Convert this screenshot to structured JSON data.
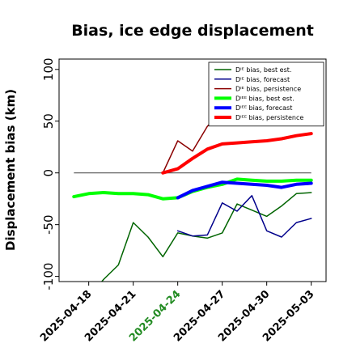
{
  "chart_data": {
    "type": "line",
    "title": "Bias, ice edge displacement",
    "xlabel": "",
    "ylabel": "Displacement bias (km)",
    "xlim": [
      "2025-04-16",
      "2025-05-04"
    ],
    "ylim": [
      -105,
      110
    ],
    "yticks": [
      -100,
      -50,
      0,
      50,
      100
    ],
    "ytick_labels": [
      "-100",
      "-50",
      "0",
      "50",
      "100"
    ],
    "xticks": [
      "2025-04-18",
      "2025-04-21",
      "2025-04-24",
      "2025-04-27",
      "2025-04-30",
      "2025-05-03"
    ],
    "highlight_xtick": "2025-04-24",
    "highlight_color": "#228B22",
    "zero_line": true,
    "grid": false,
    "legend_position": "top-right",
    "series": [
      {
        "name": "Dᴵᴱ bias, best est.",
        "color": "#006400",
        "width": 1.5,
        "x": [
          "2025-04-17",
          "2025-04-18",
          "2025-04-19",
          "2025-04-20",
          "2025-04-21",
          "2025-04-22",
          "2025-04-23",
          "2025-04-24",
          "2025-04-25",
          "2025-04-26",
          "2025-04-27",
          "2025-04-28",
          "2025-04-29",
          "2025-04-30",
          "2025-05-01",
          "2025-05-02",
          "2025-05-03"
        ],
        "y": [
          -150,
          -120,
          -103,
          -89,
          -48,
          -62,
          -81,
          -58,
          -61,
          -63,
          -58,
          -30,
          -36,
          -42,
          -32,
          -20,
          -19
        ]
      },
      {
        "name": "Dᴵᴱ bias, forecast",
        "color": "#00008B",
        "width": 1.5,
        "x": [
          "2025-04-24",
          "2025-04-25",
          "2025-04-26",
          "2025-04-27",
          "2025-04-28",
          "2025-04-29",
          "2025-04-30",
          "2025-05-01",
          "2025-05-02",
          "2025-05-03"
        ],
        "y": [
          -56,
          -61,
          -60,
          -29,
          -37,
          -22,
          -56,
          -62,
          -48,
          -44
        ]
      },
      {
        "name": "Dᴵᴱ bias, persistence",
        "color": "#8B0000",
        "width": 1.5,
        "x": [
          "2025-04-23",
          "2025-04-24",
          "2025-04-25",
          "2025-04-26",
          "2025-04-27",
          "2025-04-28",
          "2025-04-29",
          "2025-04-30",
          "2025-05-01",
          "2025-05-02",
          "2025-05-03"
        ],
        "y": [
          0,
          31,
          21,
          45,
          60,
          68,
          72,
          78,
          82,
          86,
          90
        ]
      },
      {
        "name": "Dᴵᴱᴱ bias, best est.",
        "color": "#00FF00",
        "width": 4,
        "x": [
          "2025-04-17",
          "2025-04-18",
          "2025-04-19",
          "2025-04-20",
          "2025-04-21",
          "2025-04-22",
          "2025-04-23",
          "2025-04-24",
          "2025-04-25",
          "2025-04-26",
          "2025-04-27",
          "2025-04-28",
          "2025-04-29",
          "2025-04-30",
          "2025-05-01",
          "2025-05-02",
          "2025-05-03"
        ],
        "y": [
          -23,
          -20,
          -19,
          -20,
          -20,
          -21,
          -25,
          -24,
          -18,
          -14,
          -11,
          -6,
          -7,
          -8,
          -8,
          -7,
          -7
        ]
      },
      {
        "name": "Dᴵᴱᴱ bias, forecast",
        "color": "#0000FF",
        "width": 4,
        "x": [
          "2025-04-24",
          "2025-04-25",
          "2025-04-26",
          "2025-04-27",
          "2025-04-28",
          "2025-04-29",
          "2025-04-30",
          "2025-05-01",
          "2025-05-02",
          "2025-05-03"
        ],
        "y": [
          -24,
          -17,
          -13,
          -9,
          -10,
          -11,
          -12,
          -14,
          -11,
          -10
        ]
      },
      {
        "name": "Dᴵᴱᴱ bias, persistence",
        "color": "#FF0000",
        "width": 4,
        "x": [
          "2025-04-23",
          "2025-04-24",
          "2025-04-25",
          "2025-04-26",
          "2025-04-27",
          "2025-04-28",
          "2025-04-29",
          "2025-04-30",
          "2025-05-01",
          "2025-05-02",
          "2025-05-03"
        ],
        "y": [
          0,
          4,
          14,
          23,
          28,
          29,
          30,
          31,
          33,
          36,
          38
        ]
      }
    ]
  }
}
